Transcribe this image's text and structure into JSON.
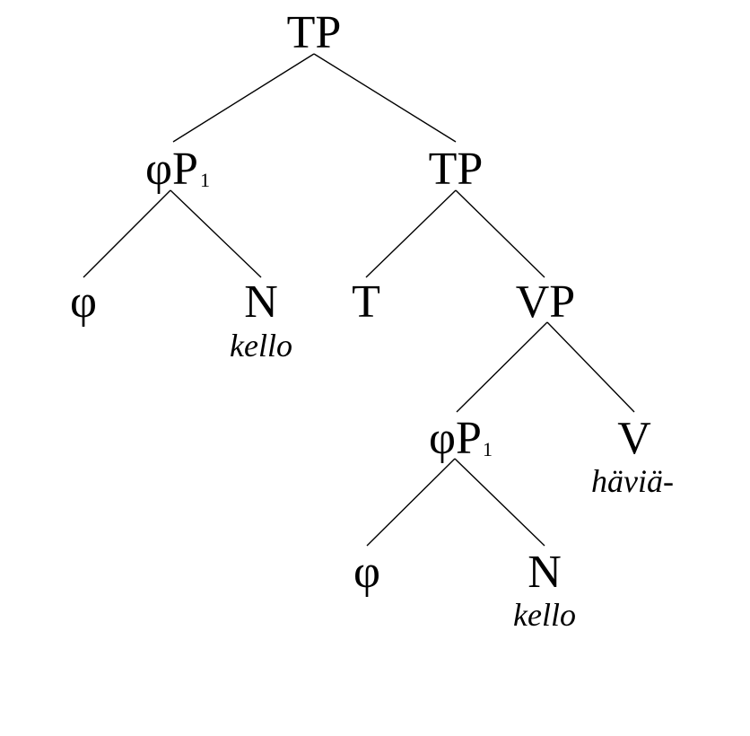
{
  "diagram": {
    "type": "syntax-tree",
    "nodes": {
      "tp_root": {
        "label": "TP"
      },
      "phip_upper": {
        "label": "φP",
        "subscript": "1"
      },
      "tp_lower": {
        "label": "TP"
      },
      "phi_upper": {
        "label": "φ"
      },
      "n_upper": {
        "label": "N",
        "word": "kello"
      },
      "t": {
        "label": "T"
      },
      "vp": {
        "label": "VP"
      },
      "phip_lower": {
        "label": "φP",
        "subscript": "1"
      },
      "v": {
        "label": "V",
        "word": "häviä-"
      },
      "phi_lower": {
        "label": "φ"
      },
      "n_lower": {
        "label": "N",
        "word": "kello"
      }
    },
    "edges": [
      [
        "tp_root",
        "phip_upper"
      ],
      [
        "tp_root",
        "tp_lower"
      ],
      [
        "phip_upper",
        "phi_upper"
      ],
      [
        "phip_upper",
        "n_upper"
      ],
      [
        "tp_lower",
        "t"
      ],
      [
        "tp_lower",
        "vp"
      ],
      [
        "vp",
        "phip_lower"
      ],
      [
        "vp",
        "v"
      ],
      [
        "phip_lower",
        "phi_lower"
      ],
      [
        "phip_lower",
        "n_lower"
      ]
    ]
  }
}
